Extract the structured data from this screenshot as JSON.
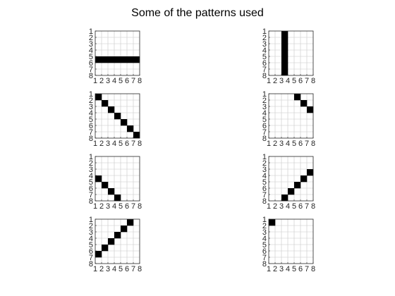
{
  "figure": {
    "title": "Some of the patterns used"
  },
  "colors": {
    "grid": "#c8c8c8",
    "axis": "#262626",
    "cell": "#000000",
    "background": "#ffffff"
  },
  "chart_data": [
    {
      "type": "heatmap",
      "title": "",
      "xlabel": "",
      "ylabel": "",
      "x_ticks": [
        "1",
        "2",
        "3",
        "4",
        "5",
        "6",
        "7",
        "8"
      ],
      "y_ticks": [
        "1",
        "2",
        "3",
        "4",
        "5",
        "6",
        "7",
        "8"
      ],
      "xlim": [
        1,
        8
      ],
      "ylim": [
        1,
        8
      ],
      "grid": true,
      "filled_cells": [
        [
          1,
          5
        ],
        [
          2,
          5
        ],
        [
          3,
          5
        ],
        [
          4,
          5
        ],
        [
          5,
          5
        ],
        [
          6,
          5
        ],
        [
          7,
          5
        ]
      ]
    },
    {
      "type": "heatmap",
      "title": "",
      "xlabel": "",
      "ylabel": "",
      "x_ticks": [
        "1",
        "2",
        "3",
        "4",
        "5",
        "6",
        "7",
        "8"
      ],
      "y_ticks": [
        "1",
        "2",
        "3",
        "4",
        "5",
        "6",
        "7",
        "8"
      ],
      "xlim": [
        1,
        8
      ],
      "ylim": [
        1,
        8
      ],
      "grid": true,
      "filled_cells": [
        [
          3,
          1
        ],
        [
          3,
          2
        ],
        [
          3,
          3
        ],
        [
          3,
          4
        ],
        [
          3,
          5
        ],
        [
          3,
          6
        ],
        [
          3,
          7
        ]
      ]
    },
    {
      "type": "heatmap",
      "title": "",
      "xlabel": "",
      "ylabel": "",
      "x_ticks": [
        "1",
        "2",
        "3",
        "4",
        "5",
        "6",
        "7",
        "8"
      ],
      "y_ticks": [
        "1",
        "2",
        "3",
        "4",
        "5",
        "6",
        "7",
        "8"
      ],
      "xlim": [
        1,
        8
      ],
      "ylim": [
        1,
        8
      ],
      "grid": true,
      "filled_cells": [
        [
          1,
          1
        ],
        [
          2,
          2
        ],
        [
          3,
          3
        ],
        [
          4,
          4
        ],
        [
          5,
          5
        ],
        [
          6,
          6
        ],
        [
          7,
          7
        ]
      ]
    },
    {
      "type": "heatmap",
      "title": "",
      "xlabel": "",
      "ylabel": "",
      "x_ticks": [
        "1",
        "2",
        "3",
        "4",
        "5",
        "6",
        "7",
        "8"
      ],
      "y_ticks": [
        "1",
        "2",
        "3",
        "4",
        "5",
        "6",
        "7",
        "8"
      ],
      "xlim": [
        1,
        8
      ],
      "ylim": [
        1,
        8
      ],
      "grid": true,
      "filled_cells": [
        [
          5,
          1
        ],
        [
          6,
          2
        ],
        [
          7,
          3
        ]
      ]
    },
    {
      "type": "heatmap",
      "title": "",
      "xlabel": "",
      "ylabel": "",
      "x_ticks": [
        "1",
        "2",
        "3",
        "4",
        "5",
        "6",
        "7",
        "8"
      ],
      "y_ticks": [
        "1",
        "2",
        "3",
        "4",
        "5",
        "6",
        "7",
        "8"
      ],
      "xlim": [
        1,
        8
      ],
      "ylim": [
        1,
        8
      ],
      "grid": true,
      "filled_cells": [
        [
          1,
          4
        ],
        [
          2,
          5
        ],
        [
          3,
          6
        ],
        [
          4,
          7
        ]
      ]
    },
    {
      "type": "heatmap",
      "title": "",
      "xlabel": "",
      "ylabel": "",
      "x_ticks": [
        "1",
        "2",
        "3",
        "4",
        "5",
        "6",
        "7",
        "8"
      ],
      "y_ticks": [
        "1",
        "2",
        "3",
        "4",
        "5",
        "6",
        "7",
        "8"
      ],
      "xlim": [
        1,
        8
      ],
      "ylim": [
        1,
        8
      ],
      "grid": true,
      "filled_cells": [
        [
          3,
          7
        ],
        [
          4,
          6
        ],
        [
          5,
          5
        ],
        [
          6,
          4
        ],
        [
          7,
          3
        ]
      ]
    },
    {
      "type": "heatmap",
      "title": "",
      "xlabel": "",
      "ylabel": "",
      "x_ticks": [
        "1",
        "2",
        "3",
        "4",
        "5",
        "6",
        "7",
        "8"
      ],
      "y_ticks": [
        "1",
        "2",
        "3",
        "4",
        "5",
        "6",
        "7",
        "8"
      ],
      "xlim": [
        1,
        8
      ],
      "ylim": [
        1,
        8
      ],
      "grid": true,
      "filled_cells": [
        [
          1,
          6
        ],
        [
          2,
          5
        ],
        [
          3,
          4
        ],
        [
          4,
          3
        ],
        [
          5,
          2
        ],
        [
          6,
          1
        ]
      ]
    },
    {
      "type": "heatmap",
      "title": "",
      "xlabel": "",
      "ylabel": "",
      "x_ticks": [
        "1",
        "2",
        "3",
        "4",
        "5",
        "6",
        "7",
        "8"
      ],
      "y_ticks": [
        "1",
        "2",
        "3",
        "4",
        "5",
        "6",
        "7",
        "8"
      ],
      "xlim": [
        1,
        8
      ],
      "ylim": [
        1,
        8
      ],
      "grid": true,
      "filled_cells": [
        [
          1,
          1
        ]
      ]
    }
  ]
}
